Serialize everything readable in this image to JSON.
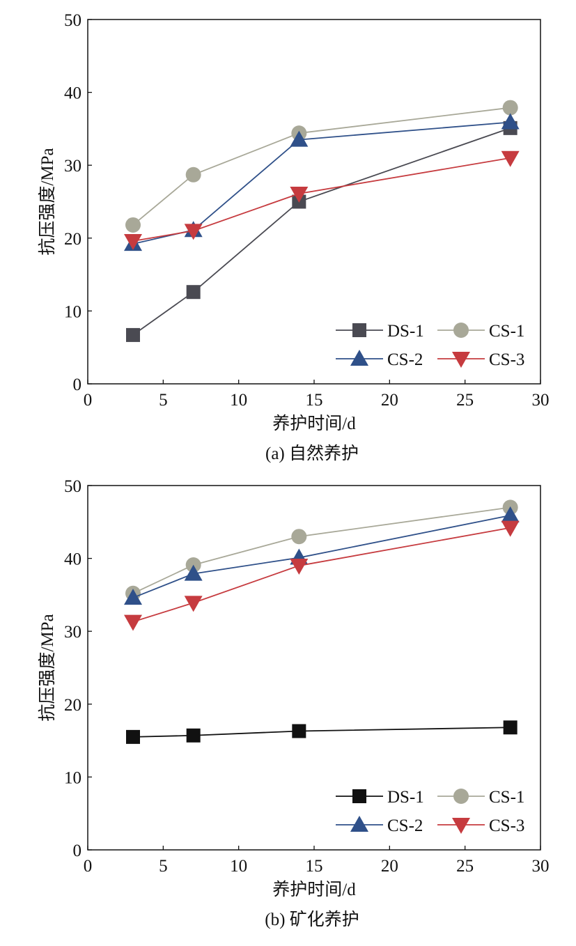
{
  "chart_data": [
    {
      "type": "line",
      "caption": "(a) 自然养护",
      "xlabel": "养护时间/d",
      "ylabel": "抗压强度/MPa",
      "xlim": [
        0,
        30
      ],
      "ylim": [
        0,
        50
      ],
      "xticks": [
        0,
        5,
        10,
        15,
        20,
        25,
        30
      ],
      "yticks": [
        0,
        10,
        20,
        30,
        40,
        50
      ],
      "grid": false,
      "legend_position": "bottom-right",
      "x": [
        3,
        7,
        14,
        28
      ],
      "series": [
        {
          "name": "DS-1",
          "marker": "square",
          "color": "#4a4a52",
          "values": [
            6.7,
            12.6,
            25.0,
            35.1
          ]
        },
        {
          "name": "CS-1",
          "marker": "circle",
          "color": "#a8a898",
          "values": [
            21.8,
            28.7,
            34.4,
            37.9
          ]
        },
        {
          "name": "CS-2",
          "marker": "triangle-up",
          "color": "#2f5089",
          "values": [
            19.2,
            21.1,
            33.5,
            35.9
          ]
        },
        {
          "name": "CS-3",
          "marker": "triangle-down",
          "color": "#c63b3f",
          "values": [
            19.6,
            21.0,
            26.1,
            31.0
          ]
        }
      ]
    },
    {
      "type": "line",
      "caption": "(b) 矿化养护",
      "xlabel": "养护时间/d",
      "ylabel": "抗压强度/MPa",
      "xlim": [
        0,
        30
      ],
      "ylim": [
        0,
        50
      ],
      "xticks": [
        0,
        5,
        10,
        15,
        20,
        25,
        30
      ],
      "yticks": [
        0,
        10,
        20,
        30,
        40,
        50
      ],
      "grid": false,
      "legend_position": "bottom-right",
      "x": [
        3,
        7,
        14,
        28
      ],
      "series": [
        {
          "name": "DS-1",
          "marker": "square",
          "color": "#111111",
          "values": [
            15.5,
            15.7,
            16.3,
            16.8
          ]
        },
        {
          "name": "CS-1",
          "marker": "circle",
          "color": "#a8a898",
          "values": [
            35.2,
            39.1,
            43.0,
            47.0
          ]
        },
        {
          "name": "CS-2",
          "marker": "triangle-up",
          "color": "#2f5089",
          "values": [
            34.6,
            37.9,
            40.1,
            45.9
          ]
        },
        {
          "name": "CS-3",
          "marker": "triangle-down",
          "color": "#c63b3f",
          "values": [
            31.3,
            33.9,
            39.0,
            44.2
          ]
        }
      ]
    }
  ]
}
